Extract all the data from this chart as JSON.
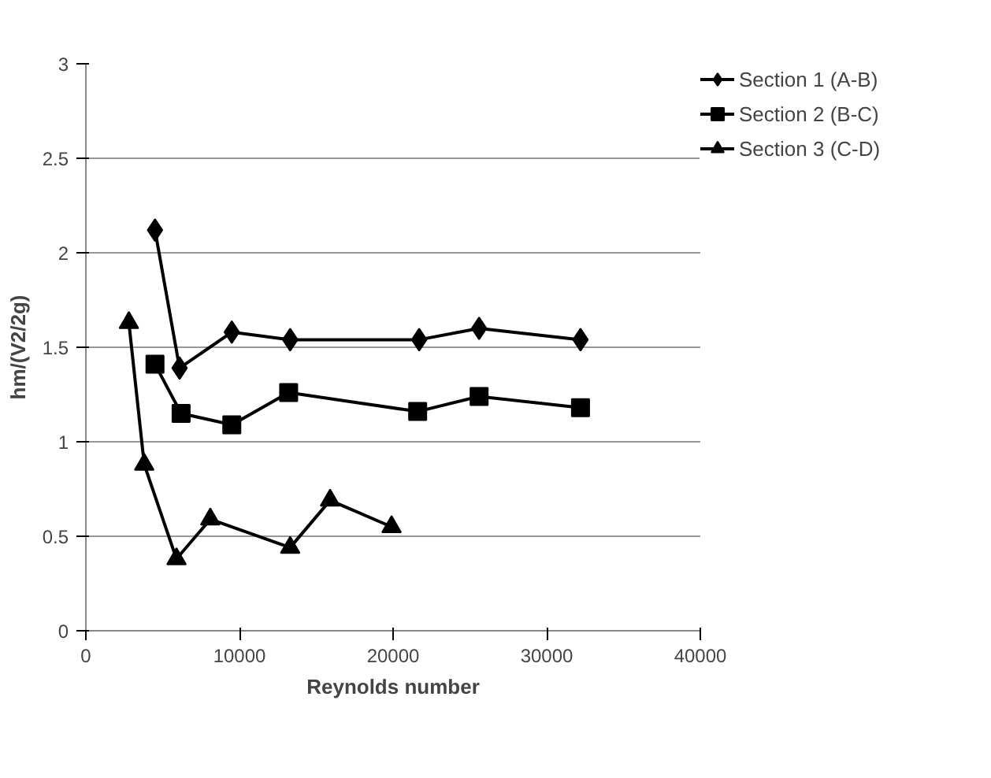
{
  "chart_data": {
    "type": "line",
    "xlabel": "Reynolds number",
    "ylabel": "hm/(V2/2g)",
    "xlim": [
      0,
      40000
    ],
    "xticks": [
      0,
      10000,
      20000,
      30000,
      40000
    ],
    "ylim": [
      0,
      3
    ],
    "yticks": [
      0,
      0.5,
      1,
      1.5,
      2,
      2.5,
      3
    ],
    "grid": "y",
    "legend": "top right",
    "line_style": "solid",
    "series": [
      {
        "name": "Section 1 (A-B)",
        "color": "#000000",
        "marker": "diamond",
        "x": [
          4500,
          6100,
          9500,
          13300,
          21700,
          25600,
          32200
        ],
        "values": [
          2.12,
          1.39,
          1.58,
          1.54,
          1.54,
          1.6,
          1.54
        ]
      },
      {
        "name": "Section 2 (B-C)",
        "color": "#000000",
        "marker": "square",
        "x": [
          4500,
          6200,
          9500,
          13200,
          21600,
          25600,
          32200
        ],
        "values": [
          1.41,
          1.15,
          1.09,
          1.26,
          1.16,
          1.24,
          1.18
        ]
      },
      {
        "name": "Section 3 (C-D)",
        "color": "#000000",
        "marker": "triangle",
        "x": [
          2800,
          3800,
          5900,
          8100,
          13300,
          15900,
          19900
        ],
        "values": [
          1.63,
          0.88,
          0.38,
          0.59,
          0.44,
          0.69,
          0.55
        ]
      }
    ]
  }
}
